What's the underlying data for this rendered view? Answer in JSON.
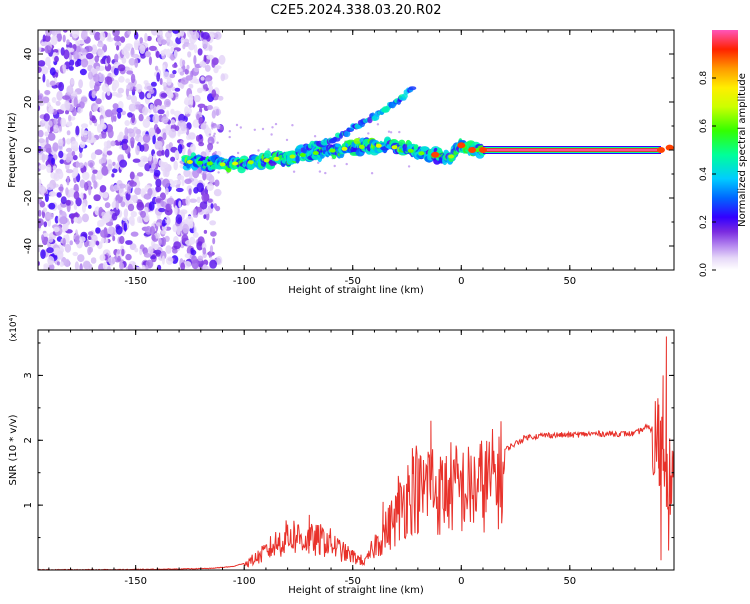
{
  "title": "C2E5.2024.338.03.20.R02",
  "chart_data": [
    {
      "type": "heatmap",
      "xlabel": "Height of straight line (km)",
      "ylabel": "Frequency (Hz)",
      "xlim": [
        -195,
        98
      ],
      "ylim": [
        -50,
        50
      ],
      "xticks": [
        -150,
        -100,
        -50,
        0,
        50
      ],
      "yticks": [
        -40,
        -20,
        0,
        20,
        40
      ],
      "colorbar": {
        "label": "Normalized spectral amplitude",
        "range": [
          0,
          1
        ],
        "ticks": [
          0.0,
          0.2,
          0.4,
          0.6,
          0.8
        ],
        "tick_labels": [
          "0.0",
          "0.2",
          "0.4",
          "0.6",
          "0.8"
        ],
        "colors": [
          "#ffffff",
          "#d9c8f2",
          "#8a2be2",
          "#5a00d8",
          "#0000ff",
          "#00ccff",
          "#00ff66",
          "#aaff00",
          "#ffff00",
          "#ff9900",
          "#ff0000",
          "#ff66cc"
        ]
      },
      "features": {
        "noise_region_x": [
          -195,
          -118
        ],
        "main_ridge": [
          [
            -125,
            -5
          ],
          [
            -110,
            -6
          ],
          [
            -95,
            -5
          ],
          [
            -80,
            -3
          ],
          [
            -65,
            -1
          ],
          [
            -50,
            1
          ],
          [
            -35,
            2
          ],
          [
            -25,
            0
          ],
          [
            -15,
            -2
          ],
          [
            -5,
            -3
          ],
          [
            0,
            2
          ],
          [
            5,
            0
          ],
          [
            10,
            0
          ],
          [
            90,
            0
          ],
          [
            97,
            1
          ]
        ],
        "harmonic_branch": [
          [
            -75,
            0
          ],
          [
            -60,
            4
          ],
          [
            -50,
            9
          ],
          [
            -40,
            14
          ],
          [
            -30,
            20
          ],
          [
            -23,
            25
          ]
        ]
      }
    },
    {
      "type": "line",
      "xlabel": "Height of straight line (km)",
      "ylabel": "SNR (10 * v/v)",
      "y_multiplier": "(x10⁴)",
      "xlim": [
        -195,
        98
      ],
      "ylim": [
        0,
        3.7
      ],
      "xticks": [
        -150,
        -100,
        -50,
        0,
        50
      ],
      "yticks": [
        1,
        2,
        3
      ],
      "line_color": "#e8312a",
      "envelope": [
        [
          -195,
          0.0
        ],
        [
          -160,
          0.0
        ],
        [
          -130,
          0.01
        ],
        [
          -115,
          0.02
        ],
        [
          -105,
          0.05
        ],
        [
          -100,
          0.1
        ],
        [
          -92,
          0.28
        ],
        [
          -85,
          0.5
        ],
        [
          -78,
          0.65
        ],
        [
          -70,
          0.55
        ],
        [
          -62,
          0.55
        ],
        [
          -55,
          0.35
        ],
        [
          -50,
          0.25
        ],
        [
          -44,
          0.15
        ],
        [
          -40,
          0.45
        ],
        [
          -35,
          0.7
        ],
        [
          -30,
          1.0
        ],
        [
          -25,
          1.4
        ],
        [
          -22,
          1.6
        ],
        [
          -18,
          1.4
        ],
        [
          -15,
          1.7
        ],
        [
          -10,
          1.4
        ],
        [
          -5,
          1.55
        ],
        [
          0,
          1.5
        ],
        [
          5,
          1.5
        ],
        [
          10,
          1.6
        ],
        [
          15,
          1.7
        ],
        [
          20,
          1.85
        ],
        [
          25,
          1.95
        ],
        [
          30,
          2.05
        ],
        [
          40,
          2.08
        ],
        [
          50,
          2.08
        ],
        [
          60,
          2.1
        ],
        [
          70,
          2.1
        ],
        [
          80,
          2.1
        ],
        [
          85,
          2.2
        ],
        [
          90,
          2.15
        ],
        [
          94,
          2.0
        ],
        [
          97,
          1.5
        ]
      ],
      "spikes": [
        [
          -14,
          2.3
        ],
        [
          -22,
          1.75
        ],
        [
          -29,
          1.45
        ],
        [
          -36,
          1.05
        ],
        [
          -70,
          0.85
        ],
        [
          -80,
          0.7
        ],
        [
          91,
          2.55
        ],
        [
          93,
          3.0
        ],
        [
          94.5,
          3.6
        ],
        [
          95.5,
          0.3
        ],
        [
          92,
          0.15
        ]
      ]
    }
  ]
}
